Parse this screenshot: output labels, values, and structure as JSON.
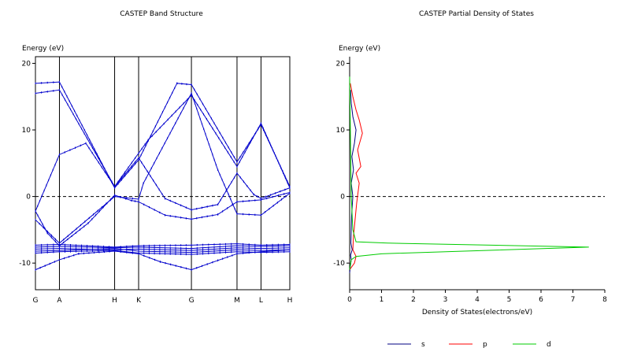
{
  "chart_data": [
    {
      "type": "line",
      "title": "CASTEP Band Structure",
      "ylabel": "Energy (eV)",
      "xlabel": "",
      "ylim": [
        -14,
        21
      ],
      "yticks": [
        -10,
        0,
        10,
        20
      ],
      "fermi_level": 0,
      "k_points": [
        {
          "label": "G",
          "x": 0
        },
        {
          "label": "A",
          "x": 1
        },
        {
          "label": "H",
          "x": 3.3
        },
        {
          "label": "K",
          "x": 4.3
        },
        {
          "label": "G",
          "x": 6.5
        },
        {
          "label": "M",
          "x": 8.4
        },
        {
          "label": "L",
          "x": 9.4
        },
        {
          "label": "H",
          "x": 10.6
        }
      ],
      "color": "#0000cc",
      "series": [
        {
          "x": [
            0,
            1,
            1.8,
            3.3,
            4.3,
            5.2,
            6.5,
            7.6,
            8.4,
            9.4,
            10.6
          ],
          "y": [
            -11,
            -9.5,
            -8.6,
            -8.2,
            -8.6,
            -9.8,
            -11,
            -9.6,
            -8.6,
            -8.3,
            -8.0
          ]
        },
        {
          "x": [
            0,
            1,
            3.3,
            4.3,
            6.5,
            8.4,
            9.4,
            10.6
          ],
          "y": [
            -7.6,
            -7.5,
            -7.7,
            -7.6,
            -7.8,
            -7.4,
            -7.5,
            -7.4
          ]
        },
        {
          "x": [
            0,
            1,
            3.3,
            4.3,
            6.5,
            8.4,
            9.4,
            10.6
          ],
          "y": [
            -7.9,
            -7.8,
            -8.0,
            -7.9,
            -8.1,
            -7.7,
            -7.8,
            -7.7
          ]
        },
        {
          "x": [
            0,
            1,
            3.3,
            4.3,
            6.5,
            8.4,
            9.4,
            10.6
          ],
          "y": [
            -8.2,
            -8.1,
            -7.8,
            -8.2,
            -8.4,
            -8.0,
            -8.1,
            -8.0
          ]
        },
        {
          "x": [
            0,
            1,
            3.3,
            4.3,
            6.5,
            8.4,
            9.4,
            10.6
          ],
          "y": [
            -8.5,
            -8.3,
            -8.1,
            -8.5,
            -8.7,
            -8.3,
            -8.4,
            -8.3
          ]
        },
        {
          "x": [
            0,
            1,
            3.3,
            4.3,
            6.5,
            8.4,
            9.4,
            10.6
          ],
          "y": [
            -7.3,
            -7.2,
            -7.6,
            -7.4,
            -7.3,
            -7.1,
            -7.3,
            -7.2
          ]
        },
        {
          "x": [
            0,
            0.5,
            1,
            2.2,
            3.3,
            4.0,
            4.3,
            5.4,
            6.5,
            7.6,
            8.4,
            9.4,
            10.6
          ],
          "y": [
            -2.2,
            -5.5,
            -7.4,
            -4.0,
            0.2,
            -0.6,
            -0.8,
            -2.8,
            -3.4,
            -2.7,
            -0.8,
            -0.5,
            0.6
          ]
        },
        {
          "x": [
            0,
            1,
            2.1,
            3.3,
            4.3,
            5.4,
            6.5,
            7.6,
            8.4,
            9.1,
            9.4,
            10.6
          ],
          "y": [
            -2.2,
            6.3,
            8.0,
            1.5,
            5.8,
            -0.3,
            -2.0,
            -1.2,
            3.5,
            0.3,
            -0.3,
            1.3
          ]
        },
        {
          "x": [
            0,
            1,
            3.3,
            4.3,
            4.7,
            6.5,
            8.4,
            9.4,
            10.6
          ],
          "y": [
            15.5,
            16.0,
            1.5,
            6.5,
            8.5,
            15.2,
            4.5,
            11.0,
            1.3
          ]
        },
        {
          "x": [
            0,
            1,
            3.3,
            4.3,
            5.9,
            6.5,
            8.4,
            9.4,
            10.6
          ],
          "y": [
            17.0,
            17.2,
            1.3,
            5.5,
            17.0,
            16.8,
            5.2,
            10.8,
            1.5
          ]
        },
        {
          "x": [
            0,
            1,
            3.3,
            4.3,
            4.5,
            6.5,
            7.6,
            8.4,
            9.4,
            10.6
          ],
          "y": [
            -3.5,
            -7.0,
            0.0,
            -0.4,
            2.0,
            15.5,
            4.0,
            -2.6,
            -2.8,
            0.5
          ]
        }
      ]
    },
    {
      "type": "line",
      "title": "CASTEP Partial  Density of States",
      "ylabel": "Energy (eV)",
      "xlabel": "Density of States(electrons/eV)",
      "xlim": [
        0,
        8
      ],
      "ylim": [
        -14,
        21
      ],
      "xticks": [
        0,
        1,
        2,
        3,
        4,
        5,
        6,
        7,
        8
      ],
      "yticks": [
        -10,
        0,
        10,
        20
      ],
      "fermi_level": 0,
      "series": [
        {
          "name": "s",
          "color": "#000080",
          "dos": [
            0,
            0.02,
            0.05,
            0.03,
            0.08,
            0.04,
            0.06,
            0.1,
            0.05,
            0.12,
            0.07,
            0.15,
            0.2,
            0.1,
            0.05,
            0.03
          ],
          "energy": [
            -11.5,
            -10.5,
            -9.5,
            -8.8,
            -8.0,
            -7.0,
            -3.0,
            0.0,
            2.0,
            4.0,
            6.0,
            8.0,
            10.0,
            12.0,
            14.0,
            16.0
          ]
        },
        {
          "name": "p",
          "color": "#ff0000",
          "dos": [
            0,
            0.15,
            0.2,
            0.1,
            0.12,
            0.18,
            0.22,
            0.3,
            0.2,
            0.35,
            0.25,
            0.4,
            0.3,
            0.2,
            0.1,
            0.02
          ],
          "energy": [
            -11.0,
            -10.0,
            -9.0,
            -8.0,
            -6.0,
            -3.0,
            -1.0,
            2.0,
            3.5,
            4.5,
            7.0,
            9.5,
            11.5,
            13.0,
            15.0,
            17.0
          ]
        },
        {
          "name": "d",
          "color": "#00cc00",
          "dos": [
            0,
            0.05,
            0.2,
            1.0,
            7.5,
            1.2,
            0.2,
            0.1,
            0.05,
            0
          ],
          "energy": [
            -11.0,
            -9.5,
            -9.0,
            -8.6,
            -7.6,
            -7.0,
            -6.8,
            -5.0,
            0.0,
            18.0
          ]
        }
      ],
      "legend": [
        "s",
        "p",
        "d"
      ],
      "legend_position": "bottom-right"
    }
  ]
}
